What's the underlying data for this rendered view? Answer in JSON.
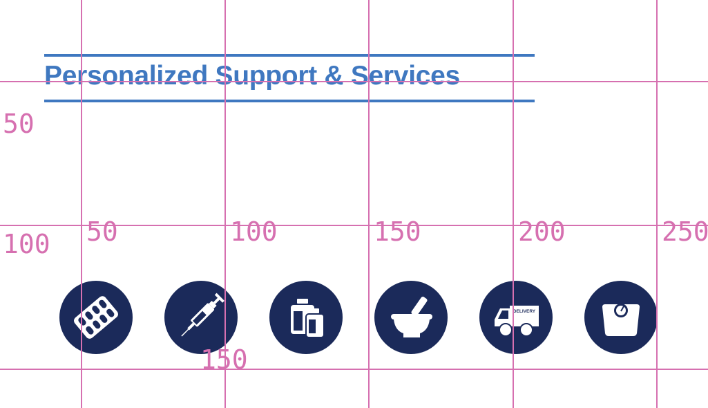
{
  "header": {
    "title": "Personalized Support & Services"
  },
  "services": [
    {
      "icon": "pill-blister-icon"
    },
    {
      "icon": "syringe-icon"
    },
    {
      "icon": "medicine-bottles-icon"
    },
    {
      "icon": "mortar-pestle-icon"
    },
    {
      "icon": "delivery-truck-icon",
      "label": "DELIVERY"
    },
    {
      "icon": "weight-scale-icon"
    }
  ],
  "grid_overlay": {
    "x_labels": [
      "50",
      "100",
      "150",
      "200",
      "250"
    ],
    "y_labels": [
      "50",
      "100",
      "150"
    ]
  },
  "colors": {
    "title": "#3f78c0",
    "icon_bg": "#1b2a5a",
    "grid": "#d670b0"
  }
}
